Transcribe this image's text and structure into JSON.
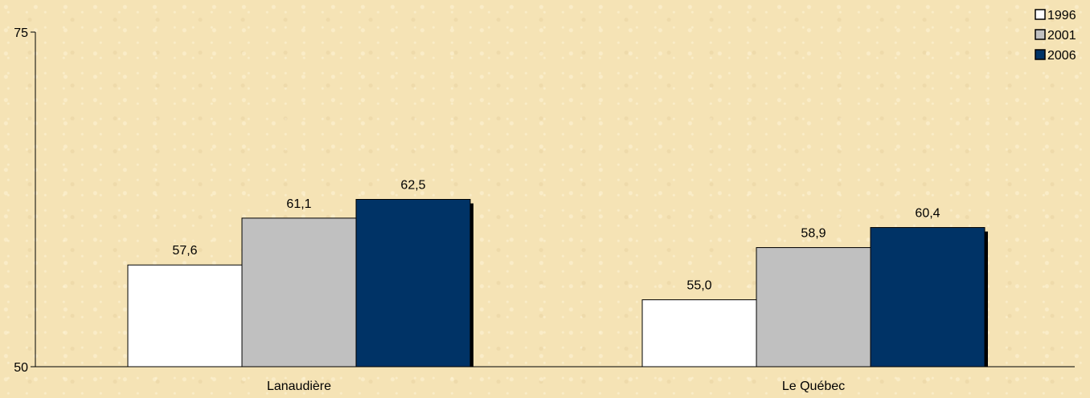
{
  "chart_data": {
    "type": "bar",
    "categories": [
      "Lanaudière",
      "Le Québec"
    ],
    "series": [
      {
        "name": "1996",
        "values": [
          57.6,
          55.0
        ],
        "labels": [
          "57,6",
          "55,0"
        ],
        "color": "#ffffff"
      },
      {
        "name": "2001",
        "values": [
          61.1,
          58.9
        ],
        "labels": [
          "61,1",
          "58,9"
        ],
        "color": "#c0c0c0"
      },
      {
        "name": "2006",
        "values": [
          62.5,
          60.4
        ],
        "labels": [
          "62,5",
          "60,4"
        ],
        "color": "#003366"
      }
    ],
    "ylim": [
      50,
      75
    ],
    "yticks": [
      "50",
      "75"
    ],
    "title": "",
    "xlabel": "",
    "ylabel": "",
    "legend_position": "top-right",
    "grid": false
  }
}
